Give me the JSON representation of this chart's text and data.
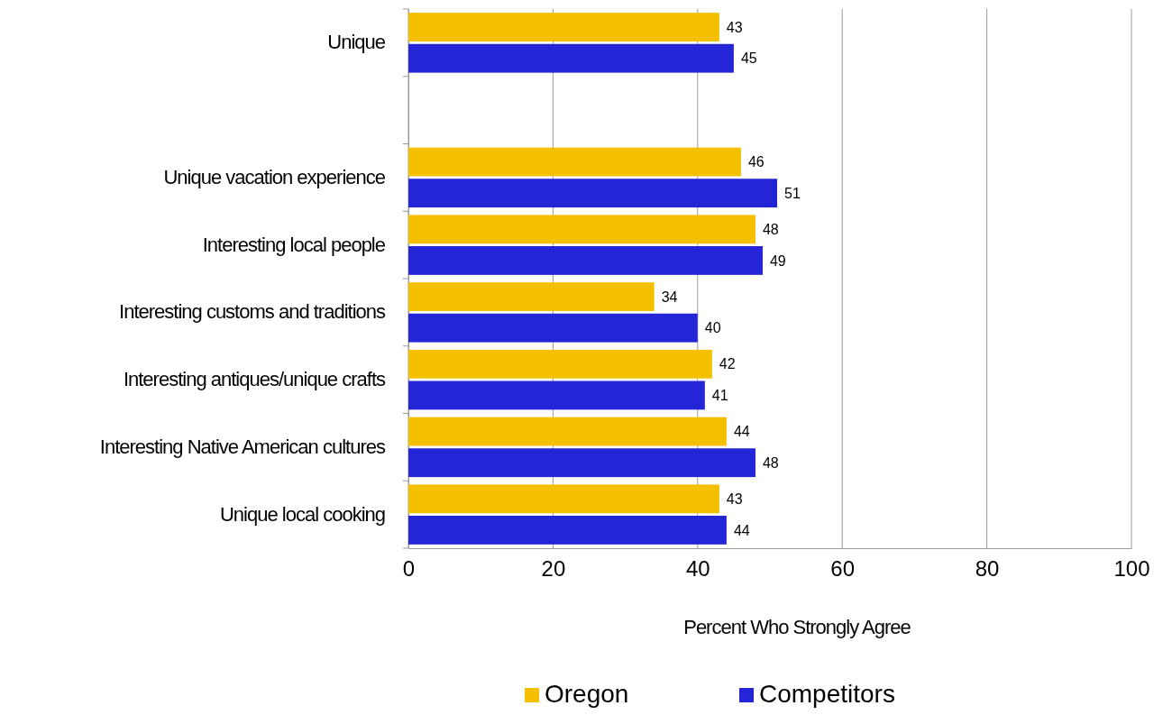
{
  "chart_data": {
    "type": "bar",
    "orientation": "horizontal",
    "xlabel": "Percent Who Strongly Agree",
    "categories": [
      "Unique",
      null,
      "Unique vacation experience",
      "Interesting local people",
      "Interesting customs and traditions",
      "Interesting antiques/unique crafts",
      "Interesting Native American cultures",
      "Unique local cooking"
    ],
    "series": [
      {
        "name": "Oregon",
        "color": "#f5c000",
        "values": [
          43,
          null,
          46,
          48,
          34,
          42,
          44,
          43
        ]
      },
      {
        "name": "Competitors",
        "color": "#2525d8",
        "values": [
          45,
          null,
          51,
          49,
          40,
          41,
          48,
          44
        ]
      }
    ],
    "xlim": [
      0,
      100
    ],
    "xticks": [
      0,
      20,
      40,
      60,
      80,
      100
    ],
    "grid": "x",
    "data_labels": true,
    "legend": "bottom"
  }
}
